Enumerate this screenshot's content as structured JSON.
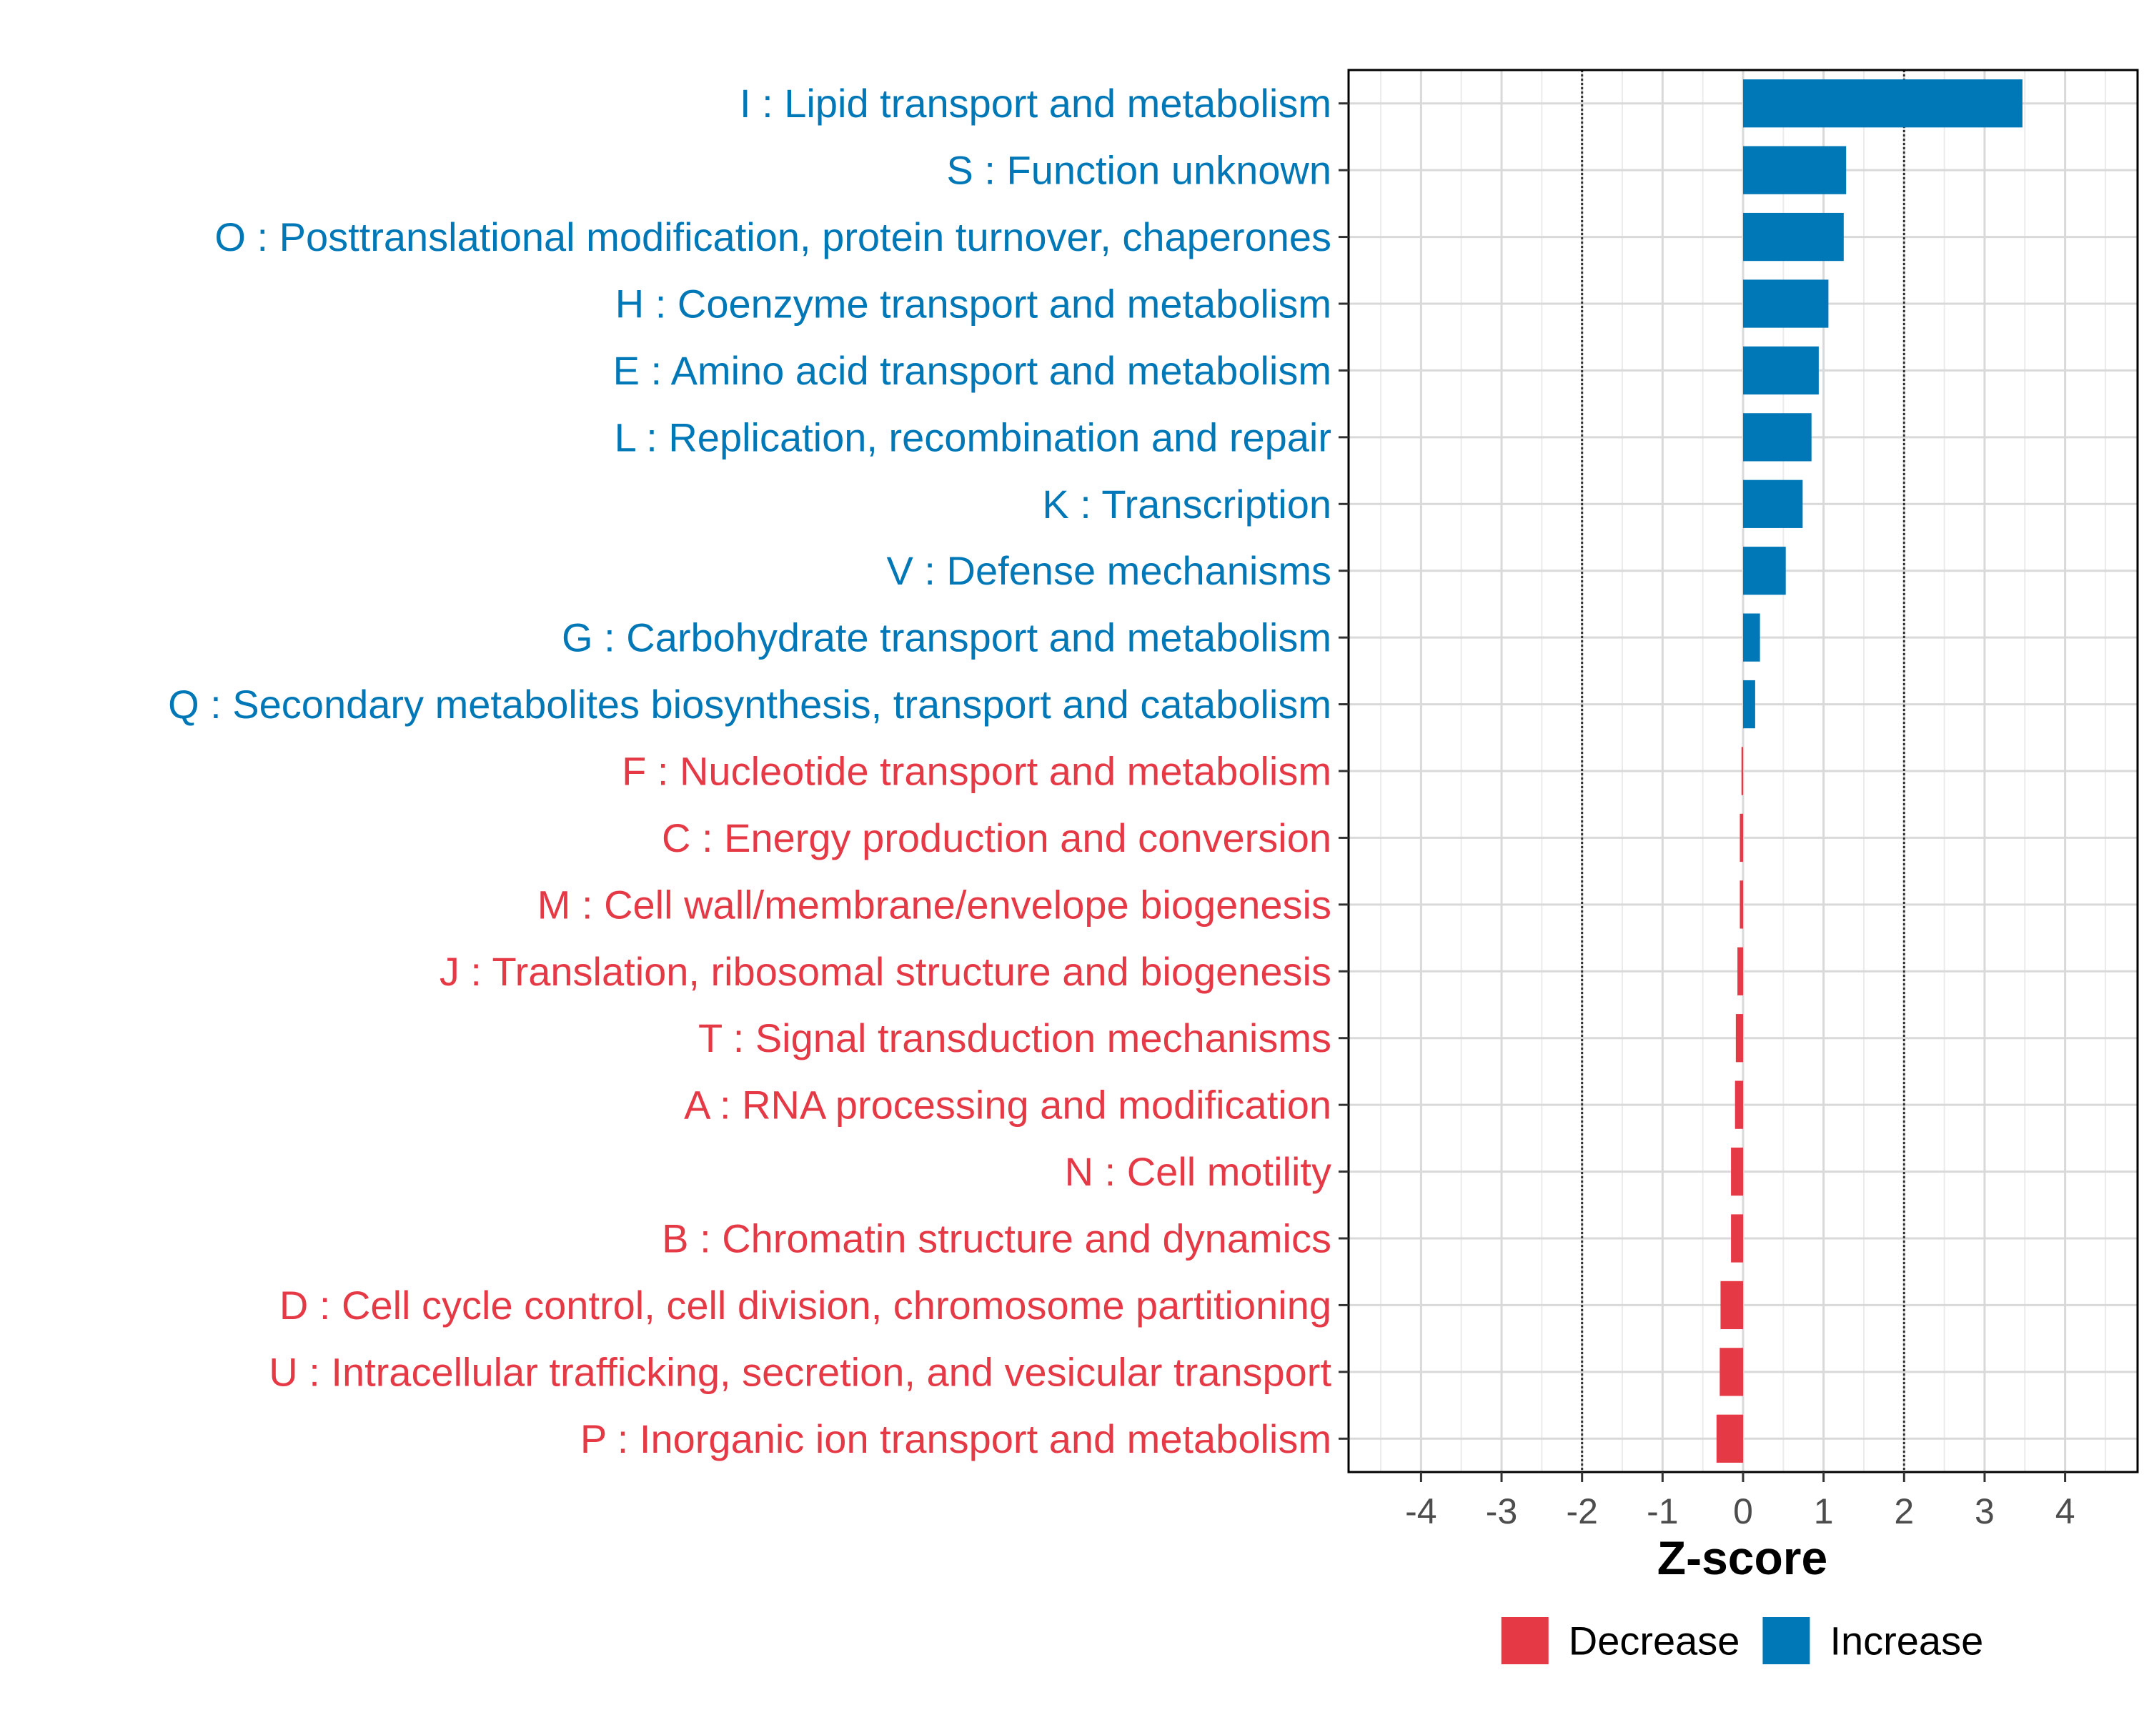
{
  "chart_data": {
    "type": "bar",
    "orientation": "horizontal",
    "xlabel": "Z-score",
    "xlim": [
      -4.9,
      4.9
    ],
    "xticks": [
      -4,
      -3,
      -2,
      -1,
      0,
      1,
      2,
      3,
      4
    ],
    "threshold_lines": [
      -2,
      2
    ],
    "grid": true,
    "legend_position": "bottom",
    "colors": {
      "Decrease": "#e63946",
      "Increase": "#0077b6"
    },
    "legend": [
      {
        "label": "Decrease",
        "color": "#e63946"
      },
      {
        "label": "Increase",
        "color": "#0077b6"
      }
    ],
    "categories": [
      "I : Lipid transport and metabolism",
      "S : Function unknown",
      "O : Posttranslational modification, protein turnover, chaperones",
      "H : Coenzyme transport and metabolism",
      "E : Amino acid transport and metabolism",
      "L : Replication, recombination and repair",
      "K : Transcription",
      "V : Defense mechanisms",
      "G : Carbohydrate transport and metabolism",
      "Q : Secondary metabolites biosynthesis, transport and catabolism",
      "F : Nucleotide transport and metabolism",
      "C : Energy production and conversion",
      "M : Cell wall/membrane/envelope biogenesis",
      "J : Translation, ribosomal structure and biogenesis",
      "T : Signal transduction mechanisms",
      "A : RNA processing and modification",
      "N : Cell motility",
      "B : Chromatin structure and dynamics",
      "D : Cell cycle control, cell division, chromosome partitioning",
      "U : Intracellular trafficking, secretion, and vesicular transport",
      "P : Inorganic ion transport and metabolism"
    ],
    "values": [
      3.47,
      1.28,
      1.25,
      1.06,
      0.94,
      0.85,
      0.74,
      0.53,
      0.21,
      0.15,
      -0.02,
      -0.04,
      -0.04,
      -0.07,
      -0.09,
      -0.1,
      -0.15,
      -0.15,
      -0.28,
      -0.29,
      -0.33
    ],
    "groups": [
      "Increase",
      "Increase",
      "Increase",
      "Increase",
      "Increase",
      "Increase",
      "Increase",
      "Increase",
      "Increase",
      "Increase",
      "Decrease",
      "Decrease",
      "Decrease",
      "Decrease",
      "Decrease",
      "Decrease",
      "Decrease",
      "Decrease",
      "Decrease",
      "Decrease",
      "Decrease"
    ]
  }
}
